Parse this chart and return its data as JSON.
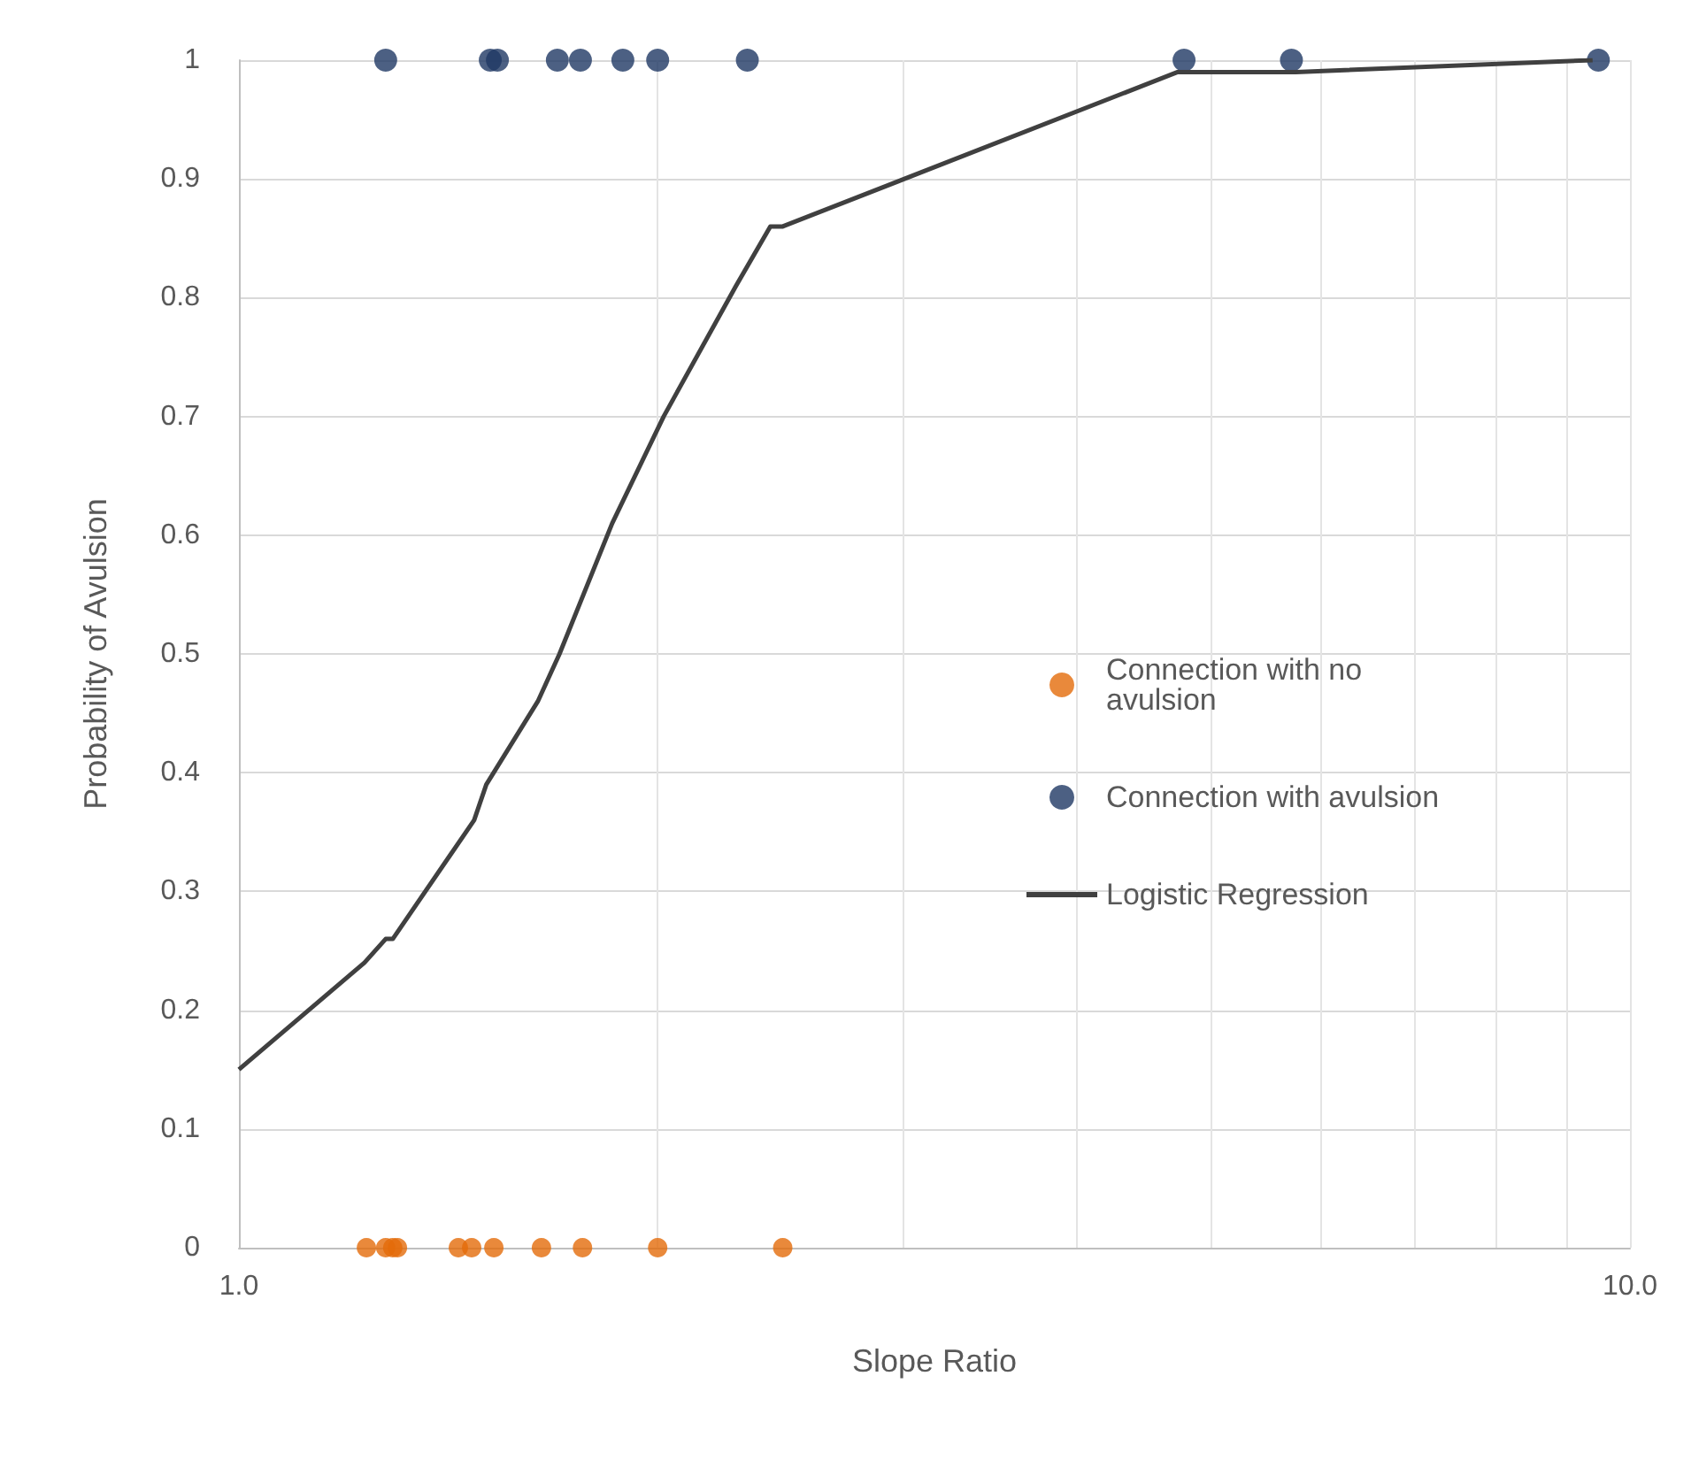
{
  "chart_data": {
    "type": "scatter",
    "xlabel": "Slope Ratio",
    "ylabel": "Probability of Avulsion",
    "log": "x",
    "grid": true,
    "legend": "right",
    "marker": "circle",
    "xlim": [
      1,
      10
    ],
    "xticks": [
      {
        "value": 1,
        "label": "1.0"
      },
      {
        "value": 2,
        "label": null
      },
      {
        "value": 3,
        "label": null
      },
      {
        "value": 4,
        "label": null
      },
      {
        "value": 5,
        "label": null
      },
      {
        "value": 6,
        "label": null
      },
      {
        "value": 7,
        "label": null
      },
      {
        "value": 8,
        "label": null
      },
      {
        "value": 9,
        "label": null
      },
      {
        "value": 10,
        "label": "10.0"
      }
    ],
    "ylim": [
      0,
      1
    ],
    "yticks": [
      0,
      0.1,
      0.2,
      0.3,
      0.4,
      0.5,
      0.6,
      0.7,
      0.8,
      0.9,
      1
    ],
    "series": [
      {
        "name": "Connection with no avulsion",
        "color": "#e46c0a",
        "x": [
          1.235,
          1.275,
          1.29,
          1.3,
          1.438,
          1.47,
          1.525,
          1.65,
          1.766,
          2.0,
          2.46
        ],
        "values": [
          0,
          0,
          0,
          0,
          0,
          0,
          0,
          0,
          0,
          0,
          0
        ]
      },
      {
        "name": "Connection with avulsion",
        "color": "#1f3864",
        "x": [
          1.275,
          1.516,
          1.534,
          1.694,
          1.76,
          1.888,
          2.0,
          2.32,
          4.78,
          5.71,
          9.49
        ],
        "values": [
          1,
          1,
          1,
          1,
          1,
          1,
          1,
          1,
          1,
          1,
          1
        ]
      },
      {
        "name": "Logistic Regression",
        "type": "line",
        "color": "#404040",
        "marker": "none",
        "x": [
          1,
          1.231,
          1.275,
          1.29,
          1.476,
          1.506,
          1.64,
          1.7,
          1.855,
          2.02,
          2.277,
          2.41,
          2.46,
          4.73,
          5.75,
          9.4
        ],
        "values": [
          0.15,
          0.24,
          0.26,
          0.26,
          0.36,
          0.39,
          0.46,
          0.5,
          0.61,
          0.7,
          0.81,
          0.86,
          0.86,
          0.99,
          0.99,
          1
        ]
      }
    ]
  }
}
